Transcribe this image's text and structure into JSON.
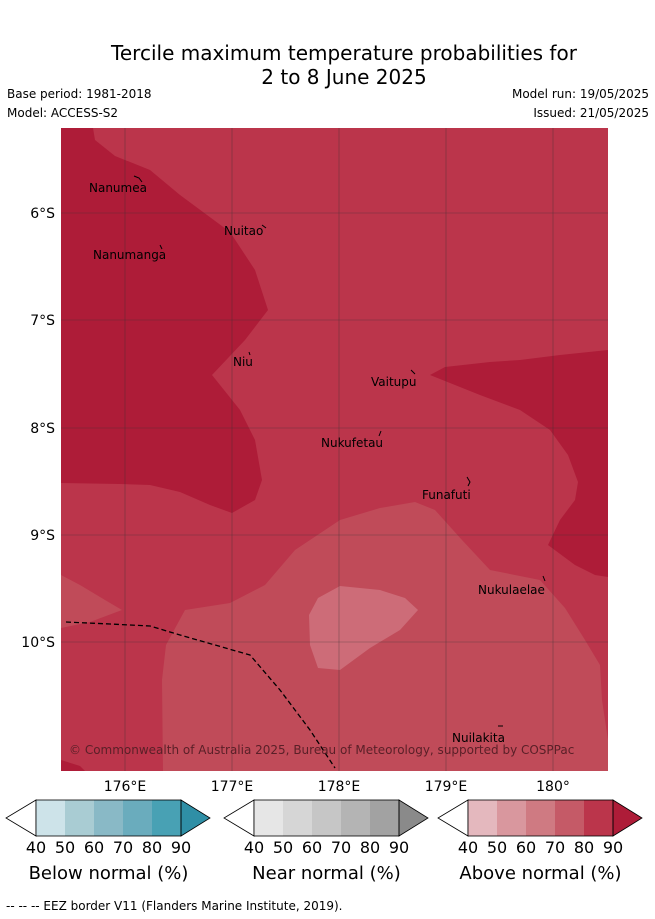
{
  "title_line1": "Tercile maximum temperature probabilities for",
  "title_line2": "2 to 8 June 2025",
  "base_period": "Base period: 1981-2018",
  "model": "Model: ACCESS-S2",
  "model_run": "Model run: 19/05/2025",
  "issued": "Issued: 21/05/2025",
  "copyright": "© Commonwealth of Australia 2025, Bureau of Meteorology, supported by COSPPac",
  "map": {
    "lon_ticks": [
      "176°E",
      "177°E",
      "178°E",
      "179°E",
      "180°"
    ],
    "lat_ticks": [
      "6°S",
      "7°S",
      "8°S",
      "9°S",
      "10°S"
    ],
    "islands": [
      {
        "name": "Nanumea"
      },
      {
        "name": "Nuitao"
      },
      {
        "name": "Nanumanga"
      },
      {
        "name": "Niu"
      },
      {
        "name": "Vaitupu"
      },
      {
        "name": "Nukufetau"
      },
      {
        "name": "Funafuti"
      },
      {
        "name": "Nukulaelae"
      },
      {
        "name": "Nuilakita"
      }
    ]
  },
  "colorbars": [
    {
      "label": "Below normal (%)",
      "ticks": [
        "40",
        "50",
        "60",
        "70",
        "80",
        "90"
      ],
      "colors": [
        "#cde3e9",
        "#a9ccd3",
        "#89b9c6",
        "#6aacbd",
        "#48a1b4",
        "#2f8fa6"
      ]
    },
    {
      "label": "Near normal (%)",
      "ticks": [
        "40",
        "50",
        "60",
        "70",
        "80",
        "90"
      ],
      "colors": [
        "#e6e6e6",
        "#d6d6d6",
        "#c6c6c6",
        "#b4b4b4",
        "#a2a2a2",
        "#8a8a8a"
      ]
    },
    {
      "label": "Above normal (%)",
      "ticks": [
        "40",
        "50",
        "60",
        "70",
        "80",
        "90"
      ],
      "colors": [
        "#e4b8be",
        "#d9979e",
        "#cf7a82",
        "#c55a67",
        "#bb354b",
        "#ae1c38"
      ]
    }
  ],
  "footer": "-- -- -- EEZ border V11 (Flanders Marine Institute, 2019)."
}
